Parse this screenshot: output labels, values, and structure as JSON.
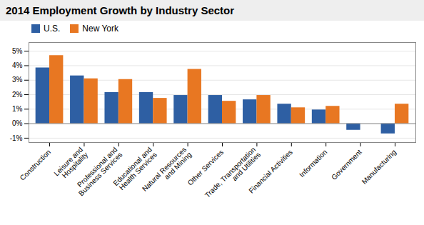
{
  "chart_data": {
    "type": "bar",
    "title": "2014 Employment Growth by Industry Sector",
    "categories": [
      "Construction",
      "Leisure and\nHospitality",
      "Professional and\nBusiness Services",
      "Educational and\nHealth Services",
      "Natural Resources\nand Mining",
      "Other Services",
      "Trade, Transportation\nand Utilities",
      "Financial Activities",
      "Information",
      "Government",
      "Manufacturing"
    ],
    "series": [
      {
        "name": "U.S.",
        "color": "#2E5FA3",
        "values": [
          0.0385,
          0.033,
          0.0215,
          0.0215,
          0.0195,
          0.0195,
          0.0165,
          0.0135,
          0.0095,
          -0.0045,
          -0.007
        ]
      },
      {
        "name": "New York",
        "color": "#E87722",
        "values": [
          0.047,
          0.031,
          0.0305,
          0.0175,
          0.0375,
          0.0155,
          0.0195,
          0.011,
          0.012,
          0,
          0.0135
        ]
      }
    ],
    "ylim": [
      -0.013,
      0.056
    ],
    "yticks": [
      {
        "value": -0.01,
        "label": "-1%"
      },
      {
        "value": 0,
        "label": "0%"
      },
      {
        "value": 0.01,
        "label": "1%"
      },
      {
        "value": 0.02,
        "label": "2%"
      },
      {
        "value": 0.03,
        "label": "3%"
      },
      {
        "value": 0.04,
        "label": "4%"
      },
      {
        "value": 0.05,
        "label": "5%"
      }
    ],
    "grid": true,
    "legend": "top"
  }
}
